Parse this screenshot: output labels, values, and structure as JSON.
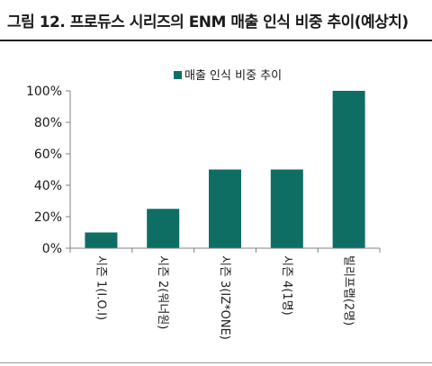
{
  "figure": {
    "title": "그림 12. 프로듀스 시리즈의 ENM 매출 인식 비중 추이(예상치)"
  },
  "chart_data": {
    "type": "bar",
    "title": "",
    "xlabel": "",
    "ylabel": "",
    "categories": [
      "시즌 1(I.O.I)",
      "시즌 2(워너원)",
      "시즌 3(IZ*ONE)",
      "시즌 4(1명)",
      "빌리프랩(2명)"
    ],
    "series": [
      {
        "name": "매출 인식 비중 추이",
        "values": [
          10,
          25,
          50,
          50,
          100
        ]
      }
    ],
    "yticks": [
      "0%",
      "20%",
      "40%",
      "60%",
      "80%",
      "100%"
    ],
    "ylim": [
      0,
      100
    ],
    "grid": false,
    "legend": "top-center",
    "colors": {
      "bar": "#0e6e64",
      "axis": "#808080"
    }
  }
}
